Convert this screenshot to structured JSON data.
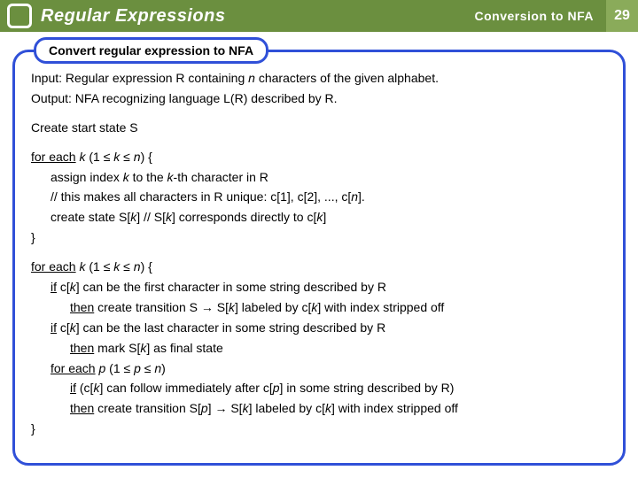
{
  "colors": {
    "header_bg": "#6b8f3f",
    "page_num_bg": "#8aab5a",
    "frame_border": "#3050d8",
    "text": "#000000",
    "header_text": "#ffffff"
  },
  "header": {
    "title": "Regular Expressions",
    "subtitle": "Conversion to NFA",
    "page": "29"
  },
  "section_label": "Convert regular expression to NFA",
  "body": {
    "input_prefix": "Input: Regular expression R containing ",
    "input_n": "n",
    "input_suffix": " characters of the given alphabet.",
    "output": "Output: NFA recognizing language L(R) described by R.",
    "create_start": "Create start state S",
    "loop1_a": "for each",
    "loop1_b": " k",
    "loop1_c": " (1 ≤ ",
    "loop1_d": "k",
    "loop1_e": " ≤ ",
    "loop1_f": "n",
    "loop1_g": ") {",
    "l1_assign_a": "assign index ",
    "l1_assign_b": "k",
    "l1_assign_c": "  to the ",
    "l1_assign_d": "k",
    "l1_assign_e": "-th character in R",
    "l1_comment_a": "// this makes all characters in R unique: c[1], c[2], ..., c[",
    "l1_comment_b": "n",
    "l1_comment_c": "].",
    "l1_create_a": "create state S[",
    "l1_create_b": "k",
    "l1_create_c": "]            // S[",
    "l1_create_d": "k",
    "l1_create_e": "] corresponds directly to c[",
    "l1_create_f": "k",
    "l1_create_g": "]",
    "close1": "}",
    "loop2_a": "for each",
    "loop2_b": " k",
    "loop2_c": " (1 ≤ ",
    "loop2_d": "k",
    "loop2_e": " ≤ ",
    "loop2_f": "n",
    "loop2_g": ") {",
    "l2_if1_a": "if",
    "l2_if1_b": " c[",
    "l2_if1_c": "k",
    "l2_if1_d": "] can be the first character in some string described by R",
    "l2_then1_a": "then",
    "l2_then1_b": " create transition S → S[",
    "l2_then1_c": "k",
    "l2_then1_d": "]  labeled by c[",
    "l2_then1_e": "k",
    "l2_then1_f": "] with index stripped off",
    "l2_if2_a": "if",
    "l2_if2_b": " c[",
    "l2_if2_c": "k",
    "l2_if2_d": "] can be the last character in some string described by R",
    "l2_then2_a": "then",
    "l2_then2_b": " mark S[",
    "l2_then2_c": "k",
    "l2_then2_d": "] as final state",
    "l2_for_a": "for  each",
    "l2_for_b": " p",
    "l2_for_c": " (1 ≤ ",
    "l2_for_d": "p",
    "l2_for_e": " ≤ ",
    "l2_for_f": "n",
    "l2_for_g": ")",
    "l2_if3_a": "if",
    "l2_if3_b": " (c[",
    "l2_if3_c": "k",
    "l2_if3_d": "] can follow immediately after c[",
    "l2_if3_e": "p",
    "l2_if3_f": "] in some string described by R)",
    "l2_then3_a": "then",
    "l2_then3_b": " create transition S[",
    "l2_then3_c": "p",
    "l2_then3_d": "] → S[",
    "l2_then3_e": "k",
    "l2_then3_f": "]  labeled by c[",
    "l2_then3_g": "k",
    "l2_then3_h": "] with index stripped off",
    "close2": "}"
  }
}
